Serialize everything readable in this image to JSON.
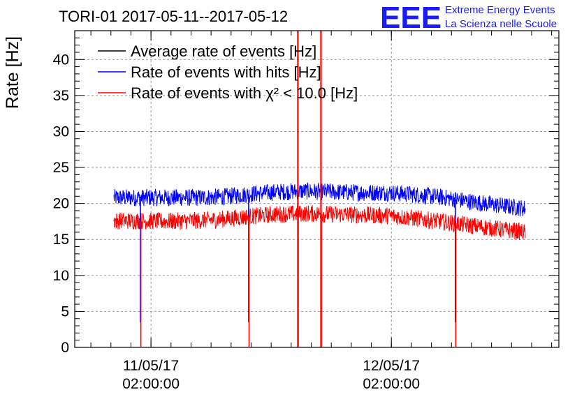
{
  "chart_data": {
    "type": "line",
    "title": "TORI-01 2017-05-11--2017-05-12",
    "ylabel": "Rate [Hz]",
    "xlabel": "",
    "ylim": [
      0,
      44
    ],
    "yticks": [
      "0",
      "5",
      "10",
      "15",
      "20",
      "25",
      "30",
      "35",
      "40"
    ],
    "xtick_labels": [
      {
        "x": 1494464400,
        "line1": "11/05/17",
        "line2": "02:00:00"
      },
      {
        "x": 1494550800,
        "line1": "12/05/17",
        "line2": "02:00:00"
      }
    ],
    "xlim": [
      1494437000,
      1494611000
    ],
    "grid": true,
    "legend_position": "top-left",
    "series": [
      {
        "name": "Average rate of events [Hz]",
        "color": "#000000",
        "x": [],
        "y": []
      },
      {
        "name": "Rate of events with hits [Hz]",
        "color": "#0000ff",
        "x": [
          1494451000,
          1494460000,
          1494470000,
          1494480000,
          1494490000,
          1494500000,
          1494510000,
          1494520000,
          1494530000,
          1494540000,
          1494550000,
          1494560000,
          1494570000,
          1494580000,
          1494590000,
          1494599000
        ],
        "y": [
          20.8,
          20.8,
          20.8,
          20.8,
          20.9,
          21.3,
          21.6,
          21.7,
          21.6,
          21.5,
          21.5,
          21.2,
          20.8,
          20.2,
          19.7,
          19.3
        ]
      },
      {
        "name": "Rate of events with χ² < 10.0 [Hz]",
        "color": "#ff0000",
        "x": [
          1494451000,
          1494460000,
          1494470000,
          1494480000,
          1494490000,
          1494500000,
          1494510000,
          1494520000,
          1494530000,
          1494540000,
          1494550000,
          1494560000,
          1494570000,
          1494580000,
          1494590000,
          1494599000
        ],
        "y": [
          17.6,
          17.6,
          17.5,
          17.6,
          17.8,
          18.2,
          18.5,
          18.6,
          18.5,
          18.4,
          18.3,
          17.9,
          17.4,
          16.9,
          16.4,
          16.0
        ]
      }
    ],
    "dropouts": [
      1494460600,
      1494499500,
      1494517200,
      1494525500,
      1494573800
    ]
  },
  "logo": {
    "mark": "EEE",
    "line1": "Extreme Energy Events",
    "line2": "La Scienza nelle Scuole"
  }
}
